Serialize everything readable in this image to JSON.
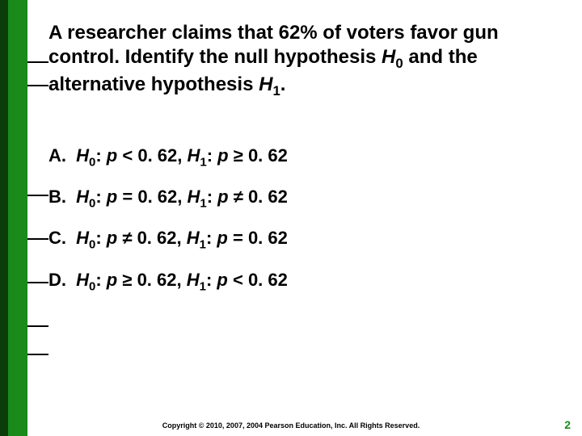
{
  "sidebar": {
    "outer_color": "#0a3d0a",
    "inner_color": "#1a8a1a",
    "tick_positions": [
      76,
      105,
      241,
      295,
      349,
      403,
      438
    ]
  },
  "question": {
    "lead": "A researcher claims that 62% of voters favor gun control.  Identify the null hypothesis ",
    "h0_var": "H",
    "h0_sub": "0",
    "mid": " and the alternative hypothesis ",
    "h1_var": "H",
    "h1_sub": "1",
    "tail": "."
  },
  "options": [
    {
      "letter": "A.",
      "h0_rel": "<",
      "h0_val": "0. 62",
      "h1_rel": "≥",
      "h1_val": "0. 62"
    },
    {
      "letter": "B.",
      "h0_rel": "=",
      "h0_val": "0. 62",
      "h1_rel": "≠",
      "h1_val": "0. 62"
    },
    {
      "letter": "C.",
      "h0_rel": "≠",
      "h0_val": "0. 62",
      "h1_rel": "=",
      "h1_val": "0. 62"
    },
    {
      "letter": "D.",
      "h0_rel": "≥",
      "h0_val": "0. 62",
      "h1_rel": "<",
      "h1_val": "0. 62"
    }
  ],
  "footer": "Copyright © 2010, 2007, 2004 Pearson Education, Inc. All Rights Reserved.",
  "page_number": "2",
  "page_number_color": "#1a8a1a"
}
